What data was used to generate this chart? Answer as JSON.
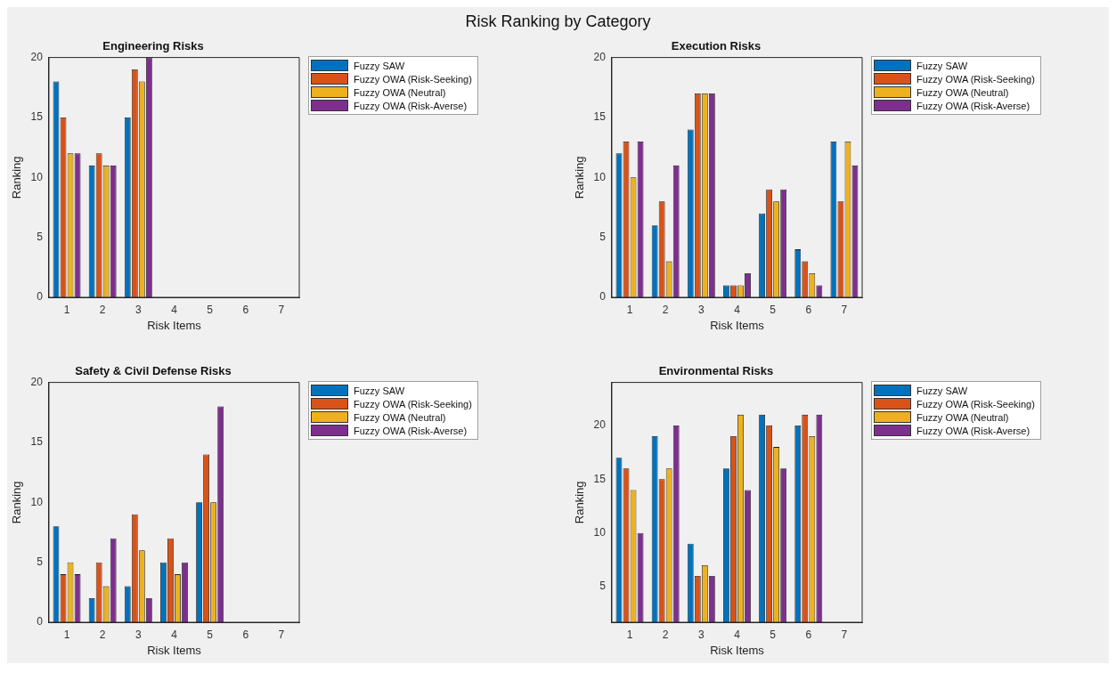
{
  "chart_data": [
    {
      "type": "other",
      "title": "Risk Ranking by Category"
    },
    {
      "type": "bar",
      "title": "Engineering Risks",
      "xlabel": "Risk Items",
      "ylabel": "Ranking",
      "categories": [
        "1",
        "2",
        "3",
        "4",
        "5",
        "6",
        "7"
      ],
      "ylim": [
        0,
        20
      ],
      "yticks": [
        0,
        5,
        10,
        15,
        20
      ],
      "legend": "top right",
      "series": [
        {
          "name": "Fuzzy SAW",
          "color": "#0072bd",
          "values": [
            18,
            11,
            15,
            null,
            null,
            null,
            null
          ]
        },
        {
          "name": "Fuzzy OWA (Risk-Seeking)",
          "color": "#d95319",
          "values": [
            15,
            12,
            19,
            null,
            null,
            null,
            null
          ]
        },
        {
          "name": "Fuzzy OWA (Neutral)",
          "color": "#edb120",
          "values": [
            12,
            11,
            18,
            null,
            null,
            null,
            null
          ]
        },
        {
          "name": "Fuzzy OWA (Risk-Averse)",
          "color": "#7e2f8e",
          "values": [
            12,
            11,
            20,
            null,
            null,
            null,
            null
          ]
        }
      ]
    },
    {
      "type": "bar",
      "title": "Execution Risks",
      "xlabel": "Risk Items",
      "ylabel": "Ranking",
      "categories": [
        "1",
        "2",
        "3",
        "4",
        "5",
        "6",
        "7"
      ],
      "ylim": [
        0,
        20
      ],
      "yticks": [
        0,
        5,
        10,
        15,
        20
      ],
      "legend": "top right",
      "series": [
        {
          "name": "Fuzzy SAW",
          "color": "#0072bd",
          "values": [
            12,
            6,
            14,
            1,
            7,
            4,
            13
          ]
        },
        {
          "name": "Fuzzy OWA (Risk-Seeking)",
          "color": "#d95319",
          "values": [
            13,
            8,
            17,
            1,
            9,
            3,
            8
          ]
        },
        {
          "name": "Fuzzy OWA (Neutral)",
          "color": "#edb120",
          "values": [
            10,
            3,
            17,
            1,
            8,
            2,
            13
          ]
        },
        {
          "name": "Fuzzy OWA (Risk-Averse)",
          "color": "#7e2f8e",
          "values": [
            13,
            11,
            17,
            2,
            9,
            1,
            11
          ]
        }
      ]
    },
    {
      "type": "bar",
      "title": "Safety & Civil Defense Risks",
      "xlabel": "Risk Items",
      "ylabel": "Ranking",
      "categories": [
        "1",
        "2",
        "3",
        "4",
        "5",
        "6",
        "7"
      ],
      "ylim": [
        0,
        20
      ],
      "yticks": [
        0,
        5,
        10,
        15,
        20
      ],
      "legend": "top right",
      "series": [
        {
          "name": "Fuzzy SAW",
          "color": "#0072bd",
          "values": [
            8,
            2,
            3,
            5,
            10,
            null,
            null
          ]
        },
        {
          "name": "Fuzzy OWA (Risk-Seeking)",
          "color": "#d95319",
          "values": [
            4,
            5,
            9,
            7,
            14,
            null,
            null
          ]
        },
        {
          "name": "Fuzzy OWA (Neutral)",
          "color": "#edb120",
          "values": [
            5,
            3,
            6,
            4,
            10,
            null,
            null
          ]
        },
        {
          "name": "Fuzzy OWA (Risk-Averse)",
          "color": "#7e2f8e",
          "values": [
            4,
            7,
            2,
            5,
            18,
            null,
            null
          ]
        }
      ]
    },
    {
      "type": "bar",
      "title": "Environmental Risks",
      "xlabel": "Risk Items",
      "ylabel": "Ranking",
      "categories": [
        "1",
        "2",
        "3",
        "4",
        "5",
        "6",
        "7"
      ],
      "ylim": [
        1.7,
        24
      ],
      "yticks": [
        5,
        10,
        15,
        20
      ],
      "legend": "top right",
      "series": [
        {
          "name": "Fuzzy SAW",
          "color": "#0072bd",
          "values": [
            17,
            19,
            9,
            16,
            21,
            20,
            null
          ]
        },
        {
          "name": "Fuzzy OWA (Risk-Seeking)",
          "color": "#d95319",
          "values": [
            16,
            15,
            6,
            19,
            20,
            21,
            null
          ]
        },
        {
          "name": "Fuzzy OWA (Neutral)",
          "color": "#edb120",
          "values": [
            14,
            16,
            7,
            21,
            18,
            19,
            null
          ]
        },
        {
          "name": "Fuzzy OWA (Risk-Averse)",
          "color": "#7e2f8e",
          "values": [
            10,
            20,
            6,
            14,
            16,
            21,
            null
          ]
        }
      ]
    }
  ]
}
